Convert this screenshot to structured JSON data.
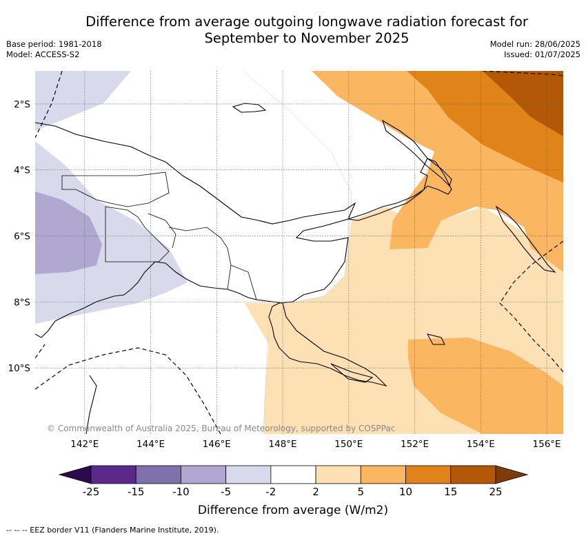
{
  "header": {
    "title_line1": "Difference from average outgoing longwave radiation forecast for",
    "title_line2": "September to November 2025",
    "base_period": "Base period: 1981-2018",
    "model": "Model: ACCESS-S2",
    "model_run": "Model run: 28/06/2025",
    "issued": "Issued: 01/07/2025"
  },
  "map": {
    "lon_range": [
      140.5,
      156.5
    ],
    "lat_range": [
      -12,
      -1
    ],
    "lon_ticks": [
      "142°E",
      "144°E",
      "146°E",
      "148°E",
      "150°E",
      "152°E",
      "154°E",
      "156°E"
    ],
    "lat_ticks": [
      "2°S",
      "4°S",
      "6°S",
      "8°S",
      "10°S"
    ],
    "grid": true,
    "copyright": "© Commonwealth of Australia 2025, Bureau of Meteorology, supported by COSPPac"
  },
  "legend": {
    "title": "Difference from average (W/m2)",
    "labels": [
      "-25",
      "-15",
      "-10",
      "-5",
      "-2",
      "2",
      "5",
      "10",
      "15",
      "25"
    ],
    "colors": [
      "#2d0a4e",
      "#5a2a8a",
      "#8070ac",
      "#b1a8d2",
      "#d8d9eb",
      "#ffffff",
      "#fde0b3",
      "#fbb661",
      "#e08319",
      "#b35806",
      "#7f3b08"
    ],
    "footnote": "--  --  -- EEZ border V11 (Flanders Marine Institute, 2019)."
  }
}
